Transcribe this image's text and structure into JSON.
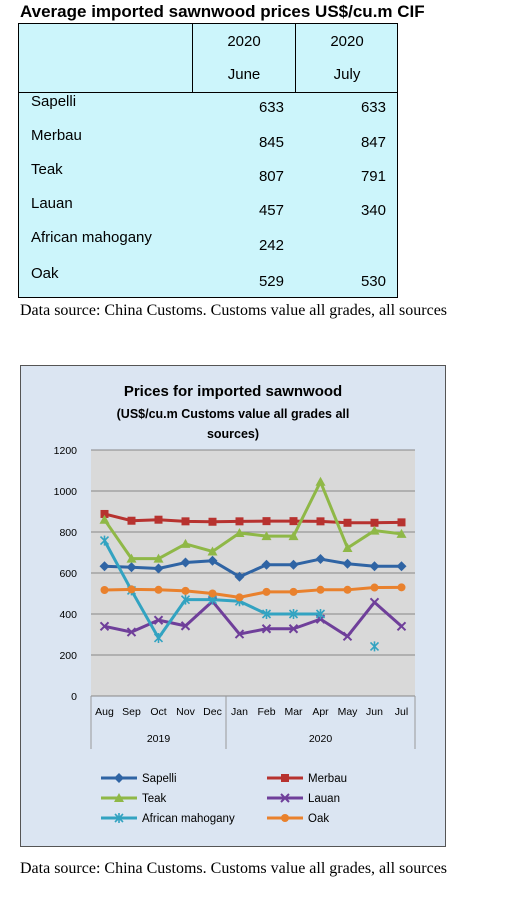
{
  "table": {
    "title": "Average imported sawnwood prices US$/cu.m CIF",
    "header": {
      "col1_year": "2020",
      "col1_month": "June",
      "col2_year": "2020",
      "col2_month": "July"
    },
    "rows": [
      {
        "name": "Sapelli",
        "june": "633",
        "july": "633"
      },
      {
        "name": "Merbau",
        "june": "845",
        "july": "847"
      },
      {
        "name": "Teak",
        "june": "807",
        "july": "791"
      },
      {
        "name": "Lauan",
        "june": "457",
        "july": "340"
      },
      {
        "name": "African mahogany",
        "june": "242",
        "july": ""
      },
      {
        "name": "Oak",
        "june": "529",
        "july": "530"
      }
    ]
  },
  "source_note": "Data source: China Customs. Customs value all grades, all sources",
  "chart_data": {
    "type": "line",
    "title": "Prices for imported sawnwood",
    "subtitle_line1": "(US$/cu.m Customs value all grades all",
    "subtitle_line2": "sources)",
    "categories": [
      "Aug",
      "Sep",
      "Oct",
      "Nov",
      "Dec",
      "Jan",
      "Feb",
      "Mar",
      "Apr",
      "May",
      "Jun",
      "Jul"
    ],
    "year_groups": [
      {
        "label": "2019",
        "from": 0,
        "to": 4
      },
      {
        "label": "2020",
        "from": 5,
        "to": 11
      }
    ],
    "ylim": [
      0,
      1200
    ],
    "yticks": [
      0,
      200,
      400,
      600,
      800,
      1000,
      1200
    ],
    "grid": true,
    "legend_position": "bottom",
    "series": [
      {
        "name": "Sapelli",
        "color": "#2f64a4",
        "marker": "diamond",
        "values": [
          633,
          628,
          622,
          651,
          660,
          582,
          640,
          640,
          668,
          645,
          633,
          633
        ]
      },
      {
        "name": "Merbau",
        "color": "#b7322f",
        "marker": "square",
        "values": [
          888,
          855,
          860,
          852,
          850,
          852,
          853,
          853,
          852,
          845,
          845,
          847
        ]
      },
      {
        "name": "Teak",
        "color": "#8fb847",
        "marker": "triangle",
        "values": [
          860,
          670,
          670,
          742,
          705,
          795,
          780,
          780,
          1045,
          722,
          807,
          791
        ]
      },
      {
        "name": "Lauan",
        "color": "#6f3f9a",
        "marker": "x",
        "values": [
          340,
          312,
          370,
          342,
          462,
          302,
          328,
          328,
          375,
          291,
          457,
          340
        ]
      },
      {
        "name": "African mahogany",
        "color": "#33a3c1",
        "marker": "star",
        "values": [
          758,
          515,
          283,
          470,
          470,
          462,
          400,
          400,
          400,
          null,
          242,
          null
        ]
      },
      {
        "name": "Oak",
        "color": "#e9812d",
        "marker": "circle",
        "values": [
          517,
          520,
          518,
          513,
          500,
          481,
          508,
          508,
          518,
          518,
          529,
          530
        ]
      }
    ]
  }
}
